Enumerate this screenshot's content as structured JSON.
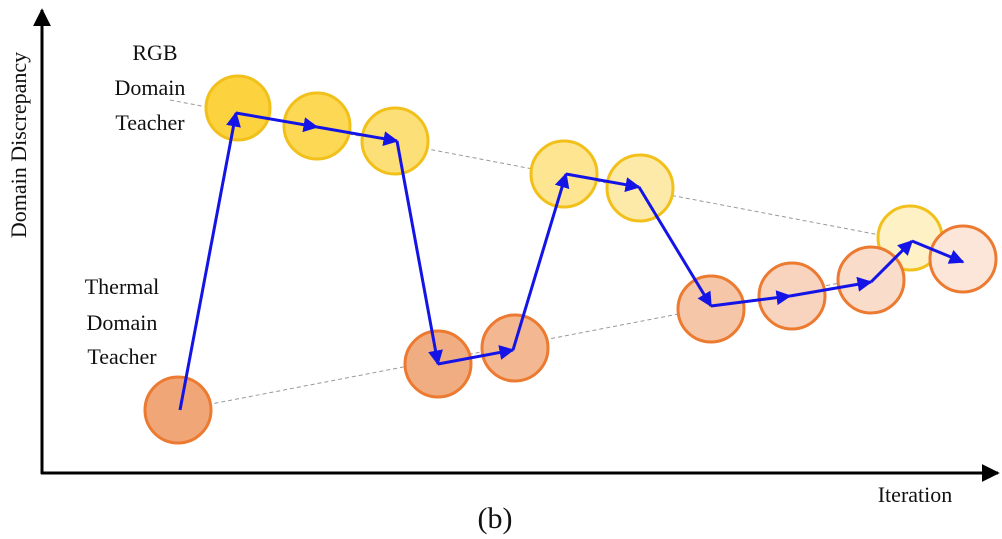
{
  "axes": {
    "y_label": "Domain Discrepancy",
    "x_label": "Iteration"
  },
  "labels": {
    "rgb_teacher": [
      "RGB",
      "Domain",
      "Teacher"
    ],
    "thermal_teacher": [
      "Thermal",
      "Domain",
      "Teacher"
    ]
  },
  "caption": "(b)"
}
